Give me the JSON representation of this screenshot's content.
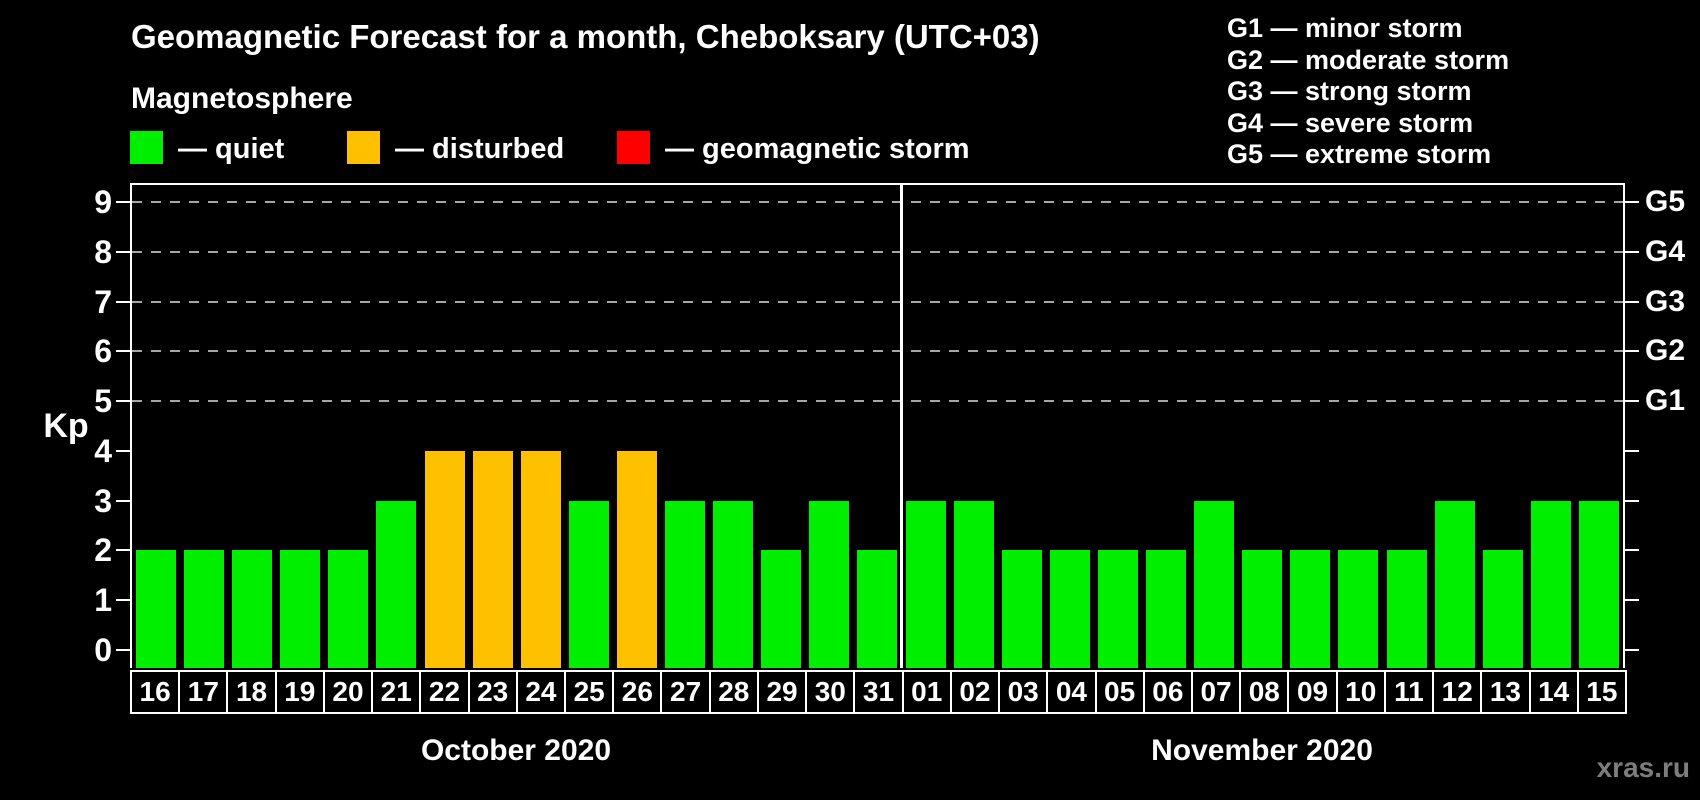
{
  "title": "Geomagnetic Forecast for a month, Cheboksary (UTC+03)",
  "subtitle": "Magnetosphere",
  "legend": {
    "items": [
      {
        "name": "quiet",
        "label": "— quiet",
        "color": "#00ee00"
      },
      {
        "name": "disturbed",
        "label": "— disturbed",
        "color": "#ffc000"
      },
      {
        "name": "geomagnetic-storm",
        "label": "— geomagnetic storm",
        "color": "#ff0000"
      }
    ]
  },
  "g_legend": [
    "G1 — minor storm",
    "G2 — moderate storm",
    "G3 — strong storm",
    "G4 — severe storm",
    "G5 — extreme storm"
  ],
  "watermark": "xras.ru",
  "chart_data": {
    "type": "bar",
    "title": "Geomagnetic Forecast for a month, Cheboksary (UTC+03)",
    "ylabel": "Kp",
    "ylim": [
      0,
      9
    ],
    "yticks": [
      0,
      1,
      2,
      3,
      4,
      5,
      6,
      7,
      8,
      9
    ],
    "gridlines_kp": [
      5,
      6,
      7,
      8,
      9
    ],
    "grid_style": "dashed horizontal lines at storm levels only",
    "legend_position": "top",
    "right_axis": {
      "labels": [
        {
          "kp": 5,
          "label": "G1"
        },
        {
          "kp": 6,
          "label": "G2"
        },
        {
          "kp": 7,
          "label": "G3"
        },
        {
          "kp": 8,
          "label": "G4"
        },
        {
          "kp": 9,
          "label": "G5"
        }
      ]
    },
    "color_rule": {
      "disturbed_min": 4,
      "storm_min": 5
    },
    "months": [
      {
        "label": "October 2020",
        "days": [
          "16",
          "17",
          "18",
          "19",
          "20",
          "21",
          "22",
          "23",
          "24",
          "25",
          "26",
          "27",
          "28",
          "29",
          "30",
          "31"
        ],
        "values": [
          2,
          2,
          2,
          2,
          2,
          3,
          4,
          4,
          4,
          3,
          4,
          3,
          3,
          2,
          3,
          2
        ]
      },
      {
        "label": "November 2020",
        "days": [
          "01",
          "02",
          "03",
          "04",
          "05",
          "06",
          "07",
          "08",
          "09",
          "10",
          "11",
          "12",
          "13",
          "14",
          "15"
        ],
        "values": [
          3,
          3,
          2,
          2,
          2,
          2,
          3,
          2,
          2,
          2,
          2,
          3,
          2,
          3,
          3
        ]
      }
    ]
  }
}
